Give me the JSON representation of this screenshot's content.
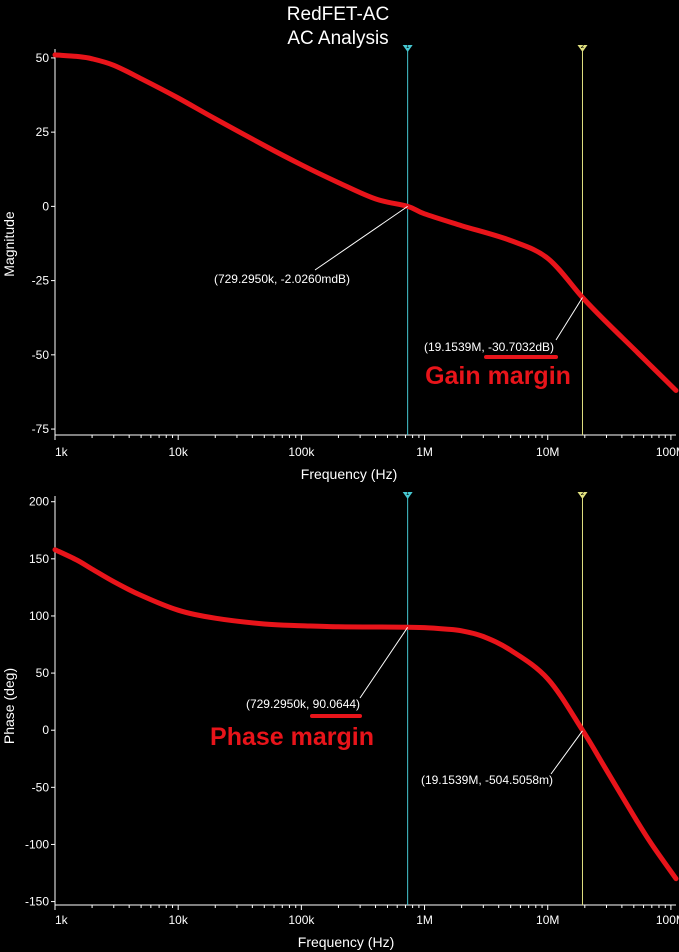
{
  "chart_data": [
    {
      "type": "line",
      "title": "RedFET-AC",
      "subtitle": "AC Analysis",
      "xlabel": "Frequency (Hz)",
      "ylabel": "Magnitude",
      "xscale": "log",
      "xlim": [
        1000,
        110000000
      ],
      "ylim": [
        -77,
        53
      ],
      "x_ticks": [
        1000,
        10000,
        100000,
        1000000,
        10000000,
        100000000
      ],
      "x_tick_labels": [
        "1k",
        "10k",
        "100k",
        "1M",
        "10M",
        "100M"
      ],
      "y_ticks": [
        50,
        25,
        0,
        -25,
        -50,
        -75
      ],
      "y_tick_labels": [
        "50",
        "25",
        "0",
        "-25",
        "-50",
        "-75"
      ],
      "grid": false,
      "series": [
        {
          "color": "#e8141a",
          "x": [
            1000,
            1500,
            2000,
            3000,
            5000,
            10000,
            20000,
            50000,
            100000,
            200000,
            400000,
            729295,
            1000000,
            2000000,
            5000000,
            10000000,
            19153900,
            30000000,
            50000000,
            70000000,
            110000000
          ],
          "y": [
            51,
            50.5,
            49.7,
            47.5,
            43,
            36.5,
            29.5,
            20.5,
            14,
            8,
            2.5,
            0,
            -2.5,
            -6.5,
            -11.5,
            -17.5,
            -30.7,
            -39,
            -48,
            -54,
            -62
          ]
        }
      ],
      "cursors": [
        {
          "name": "1",
          "x": 729295,
          "color": "#46c8d2",
          "readout": "(729.2950k, -2.0260mdB)",
          "point_y": 0
        },
        {
          "name": "2",
          "x": 19153900,
          "color": "#e0e080",
          "readout": "(19.1539M, -30.7032dB)",
          "point_y": -30.7032
        }
      ],
      "annotation": "Gain margin",
      "annotation_color": "#e8141a"
    },
    {
      "type": "line",
      "xlabel": "Frequency (Hz)",
      "ylabel": "Phase (deg)",
      "xscale": "log",
      "xlim": [
        1000,
        110000000
      ],
      "ylim": [
        -153,
        205
      ],
      "x_ticks": [
        1000,
        10000,
        100000,
        1000000,
        10000000,
        100000000
      ],
      "x_tick_labels": [
        "1k",
        "10k",
        "100k",
        "1M",
        "10M",
        "100M"
      ],
      "y_ticks": [
        200,
        150,
        100,
        50,
        0,
        -50,
        -100,
        -150
      ],
      "y_tick_labels": [
        "200",
        "150",
        "100",
        "50",
        "0",
        "-50",
        "-100",
        "-150"
      ],
      "grid": false,
      "series": [
        {
          "color": "#e8141a",
          "x": [
            1000,
            1500,
            2000,
            3000,
            5000,
            10000,
            20000,
            50000,
            100000,
            200000,
            400000,
            729295,
            1000000,
            1500000,
            2000000,
            3000000,
            5000000,
            10000000,
            19153900,
            30000000,
            50000000,
            70000000,
            110000000
          ],
          "y": [
            158,
            149,
            141,
            130,
            118,
            105,
            98,
            93,
            91.5,
            90.5,
            90.3,
            90.06,
            89.8,
            88.5,
            87,
            82,
            70,
            45,
            0,
            -35,
            -75,
            -100,
            -130
          ]
        }
      ],
      "cursors": [
        {
          "name": "1",
          "x": 729295,
          "color": "#46c8d2",
          "readout": "(729.2950k, 90.0644)",
          "point_y": 90.0644
        },
        {
          "name": "2",
          "x": 19153900,
          "color": "#e0e080",
          "readout": "(19.1539M, -504.5058m)",
          "point_y": -0.5045058
        }
      ],
      "annotation": "Phase margin",
      "annotation_color": "#e8141a"
    }
  ]
}
